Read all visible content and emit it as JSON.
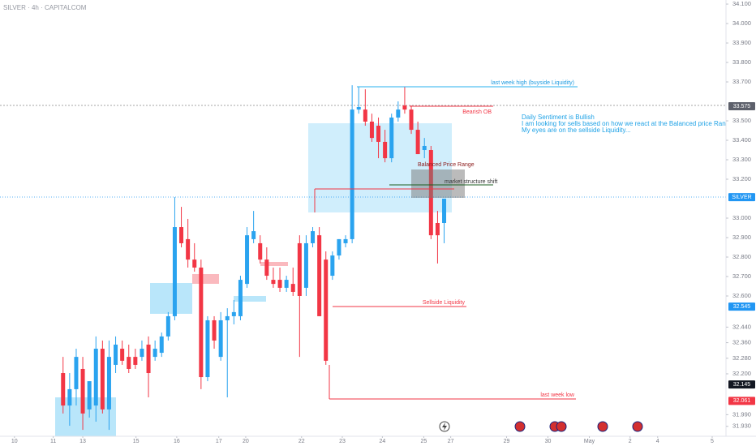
{
  "chart_data": {
    "type": "candlestick",
    "title": "SILVER · 4h · CAPITALCOM",
    "up_color": "#2aa3ef",
    "down_color": "#f23645",
    "grid": false,
    "open": [
      32.204,
      32.037,
      32.121,
      32.225,
      32.017,
      32.037,
      32.329,
      32.017,
      32.246,
      32.329,
      32.287,
      32.287,
      32.287,
      32.35,
      32.287,
      32.308,
      32.392,
      32.496,
      32.954,
      32.892,
      32.787,
      32.746,
      32.183,
      32.475,
      32.287,
      32.475,
      32.496,
      32.496,
      32.662,
      32.892,
      32.871,
      32.787,
      32.683,
      32.683,
      32.642,
      32.662,
      32.871,
      32.642,
      32.871,
      32.912,
      32.787,
      32.704,
      32.808,
      32.871,
      32.892,
      33.558,
      33.558,
      33.496,
      33.475,
      33.392,
      33.308,
      33.517,
      33.579,
      33.558,
      33.454,
      33.35,
      33.35,
      32.975,
      32.975
    ],
    "high": [
      32.287,
      32.204,
      32.329,
      32.287,
      32.162,
      32.392,
      32.371,
      32.371,
      32.392,
      32.371,
      32.35,
      32.329,
      32.371,
      32.392,
      32.371,
      32.412,
      32.517,
      33.108,
      33.058,
      32.996,
      32.871,
      32.787,
      32.496,
      32.496,
      32.517,
      32.537,
      32.579,
      32.704,
      32.954,
      33.037,
      32.912,
      32.85,
      32.746,
      32.746,
      32.704,
      32.746,
      32.912,
      32.912,
      32.954,
      32.954,
      32.829,
      32.829,
      32.892,
      32.912,
      33.683,
      33.675,
      33.662,
      33.537,
      33.517,
      33.454,
      33.537,
      33.6,
      33.675,
      33.579,
      33.496,
      33.412,
      33.371,
      33.037,
      33.1
    ],
    "low": [
      31.996,
      31.933,
      32.037,
      31.912,
      31.975,
      31.954,
      31.996,
      31.912,
      32.204,
      32.246,
      32.204,
      32.225,
      32.267,
      32.079,
      32.267,
      32.287,
      32.371,
      32.475,
      32.85,
      32.746,
      32.725,
      32.121,
      32.162,
      32.329,
      32.267,
      32.079,
      32.454,
      32.475,
      32.642,
      32.871,
      32.767,
      32.683,
      32.642,
      32.621,
      32.621,
      32.6,
      32.287,
      32.6,
      32.85,
      32.496,
      32.246,
      32.683,
      32.787,
      32.85,
      32.871,
      33.537,
      33.475,
      33.392,
      33.308,
      33.287,
      33.287,
      33.496,
      33.537,
      33.433,
      33.329,
      33.308,
      32.892,
      32.767,
      32.871
    ],
    "close": [
      32.037,
      32.121,
      32.287,
      31.996,
      32.162,
      32.329,
      32.017,
      32.287,
      32.35,
      32.267,
      32.225,
      32.246,
      32.329,
      32.204,
      32.329,
      32.392,
      32.496,
      32.954,
      32.871,
      32.787,
      32.746,
      32.183,
      32.475,
      32.371,
      32.475,
      32.496,
      32.517,
      32.683,
      32.912,
      32.933,
      32.787,
      32.704,
      32.662,
      32.642,
      32.683,
      32.621,
      32.6,
      32.871,
      32.933,
      32.496,
      32.267,
      32.808,
      32.892,
      32.892,
      33.558,
      33.571,
      33.496,
      33.412,
      33.392,
      33.308,
      33.517,
      33.558,
      33.558,
      33.454,
      33.329,
      33.371,
      32.912,
      32.912,
      33.1
    ],
    "xlim": [
      -9.6,
      100.9
    ],
    "xticks": [
      {
        "value": -7.4,
        "label": "10"
      },
      {
        "value": -1.5,
        "label": "11"
      },
      {
        "value": 3.0,
        "label": "13"
      },
      {
        "value": 11.1,
        "label": "15"
      },
      {
        "value": 17.3,
        "label": "16"
      },
      {
        "value": 23.7,
        "label": "17"
      },
      {
        "value": 27.8,
        "label": "20"
      },
      {
        "value": 36.3,
        "label": "22"
      },
      {
        "value": 42.5,
        "label": "23"
      },
      {
        "value": 48.6,
        "label": "24"
      },
      {
        "value": 54.9,
        "label": "25"
      },
      {
        "value": 59.0,
        "label": "27"
      },
      {
        "value": 67.5,
        "label": "29"
      },
      {
        "value": 73.8,
        "label": "30"
      },
      {
        "value": 80.1,
        "label": "May"
      },
      {
        "value": 86.3,
        "label": "2"
      },
      {
        "value": 90.5,
        "label": "4"
      },
      {
        "value": 98.8,
        "label": "5"
      }
    ],
    "ylim": [
      31.879,
      34.121
    ],
    "yticks": [
      {
        "value": 34.1,
        "label": "34.100"
      },
      {
        "value": 34.0,
        "label": "34.000"
      },
      {
        "value": 33.9,
        "label": "33.900"
      },
      {
        "value": 33.8,
        "label": "33.800"
      },
      {
        "value": 33.7,
        "label": "33.700"
      },
      {
        "value": 33.5,
        "label": "33.500"
      },
      {
        "value": 33.4,
        "label": "33.400"
      },
      {
        "value": 33.3,
        "label": "33.300"
      },
      {
        "value": 33.2,
        "label": "33.200"
      },
      {
        "value": 33.0,
        "label": "33.000"
      },
      {
        "value": 32.9,
        "label": "32.900"
      },
      {
        "value": 32.8,
        "label": "32.800"
      },
      {
        "value": 32.7,
        "label": "32.700"
      },
      {
        "value": 32.6,
        "label": "32.600"
      },
      {
        "value": 32.44,
        "label": "32.440"
      },
      {
        "value": 32.36,
        "label": "32.360"
      },
      {
        "value": 32.28,
        "label": "32.280"
      },
      {
        "value": 32.2,
        "label": "32.200"
      },
      {
        "value": 31.99,
        "label": "31.990"
      },
      {
        "value": 31.93,
        "label": "31.930"
      }
    ],
    "price_labels": [
      {
        "value": 33.575,
        "label": "33.575",
        "color": "#5d606b"
      },
      {
        "value": 32.545,
        "label": "32.545",
        "color": "#2196f3"
      },
      {
        "value": 32.145,
        "label": "32.145",
        "color": "#131722"
      },
      {
        "value": 32.061,
        "label": "32.061",
        "color": "#f23645"
      }
    ],
    "symbol_marker": {
      "label": "SILVER",
      "value": 33.108,
      "color": "#2196f3"
    },
    "annotations": {
      "week_high": "last week high (buyside Liquidity)",
      "bearish_ob": "Bearish OB",
      "note_1": "Daily Sentiment is Bullish",
      "note_2": "I am looking for sells based on how we react at the Balanced price Range...",
      "note_3": "My eyes are on the sellside Liquidity...",
      "bpr": "Balanced Price Range",
      "mss": "market structure shift",
      "sellside": "Sellside Liquidity",
      "week_low": "last week low"
    }
  }
}
